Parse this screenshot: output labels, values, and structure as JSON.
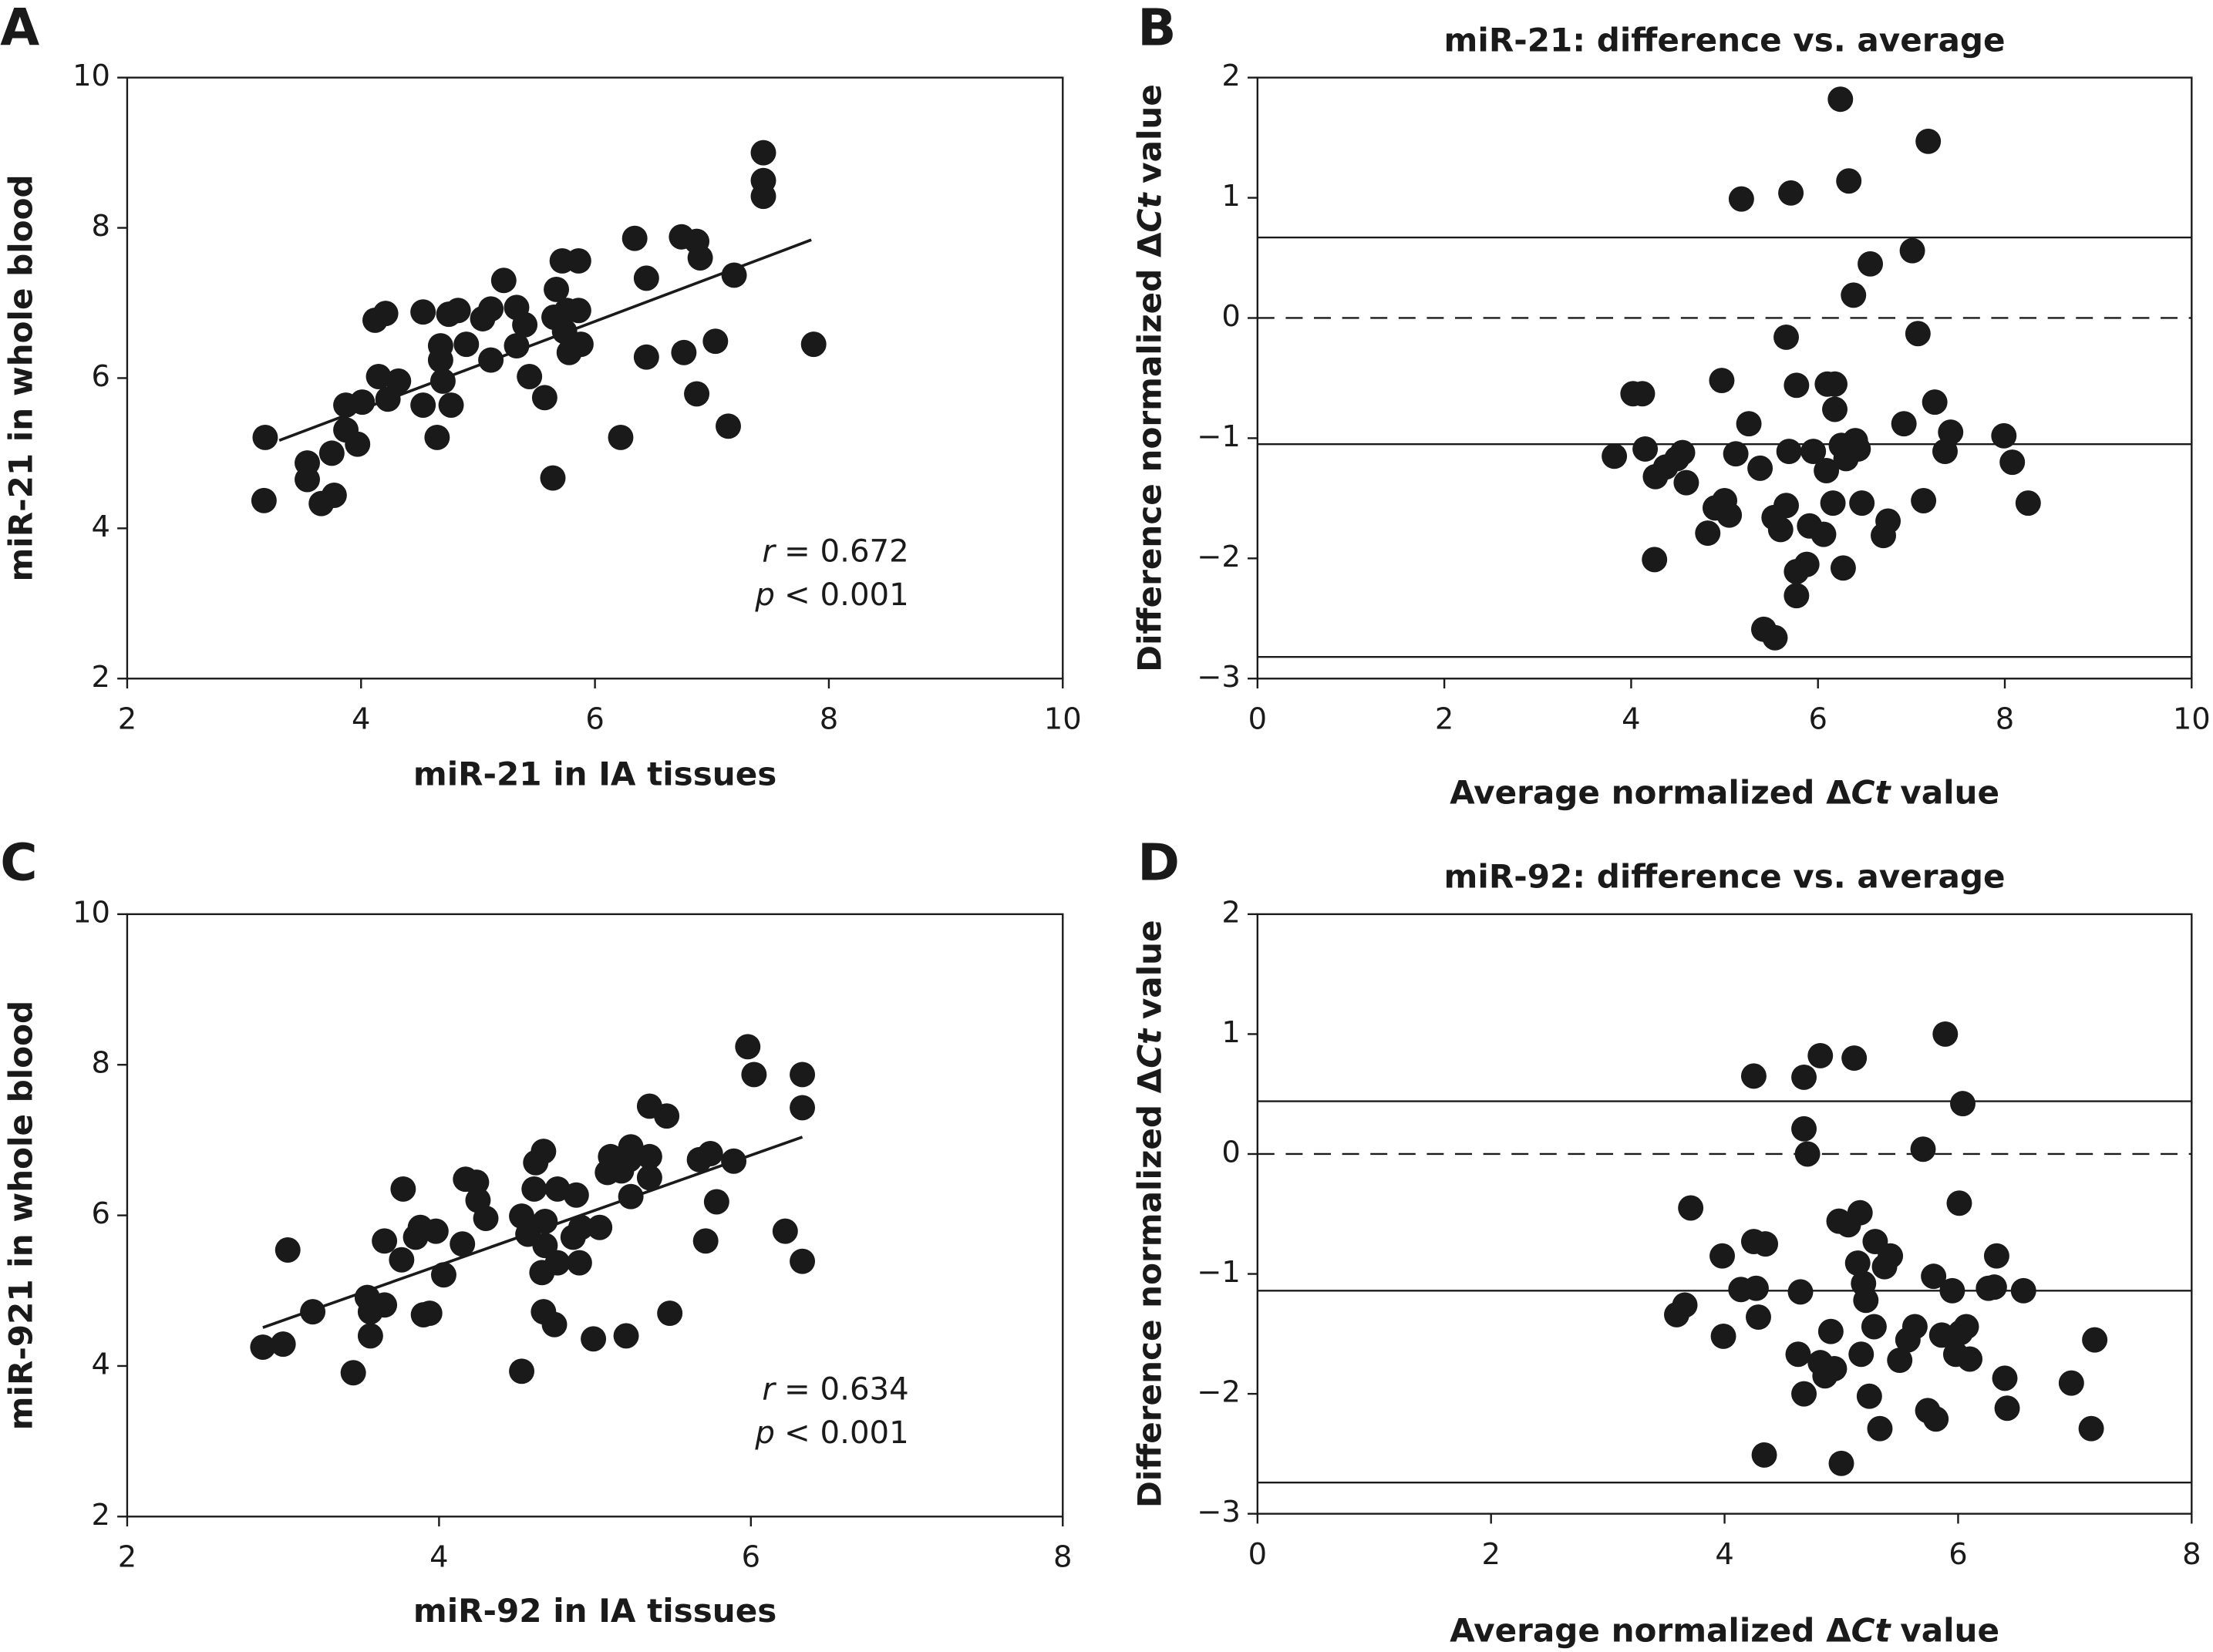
{
  "chart_data": [
    {
      "type": "scatter",
      "panel": "A",
      "xlabel": [
        {
          "text": "miR-21 in IA tissues"
        }
      ],
      "ylabel": [
        {
          "text": "miR-21 in whole blood"
        }
      ],
      "xlim": [
        2,
        10
      ],
      "xticks": [
        2,
        4,
        6,
        8,
        10
      ],
      "ylim": [
        2,
        10
      ],
      "yticks": [
        2,
        4,
        6,
        8,
        10
      ],
      "color": "#1a1a1a",
      "x": [
        3.18,
        3.17,
        3.54,
        3.54,
        3.66,
        3.77,
        3.75,
        3.87,
        3.87,
        3.97,
        4.01,
        4.15,
        4.23,
        4.32,
        4.12,
        4.21,
        4.53,
        4.53,
        4.65,
        4.68,
        4.68,
        4.7,
        4.75,
        4.77,
        4.83,
        4.9,
        5.04,
        5.11,
        5.11,
        5.22,
        5.33,
        5.33,
        5.4,
        5.44,
        5.57,
        5.64,
        5.65,
        5.67,
        5.72,
        5.74,
        5.76,
        5.78,
        5.86,
        5.86,
        5.88,
        6.22,
        6.34,
        6.44,
        6.44,
        6.74,
        6.76,
        6.87,
        6.9,
        6.87,
        7.03,
        7.14,
        7.19,
        7.44,
        7.44,
        7.44,
        7.87
      ],
      "values": [
        5.21,
        4.37,
        4.87,
        4.65,
        4.33,
        4.44,
        5.0,
        5.31,
        5.64,
        5.12,
        5.68,
        6.02,
        5.72,
        5.96,
        6.77,
        6.86,
        6.88,
        5.64,
        5.21,
        6.43,
        6.24,
        5.96,
        6.85,
        5.64,
        6.9,
        6.45,
        6.79,
        6.92,
        6.24,
        7.3,
        6.94,
        6.43,
        6.71,
        6.02,
        5.74,
        4.67,
        6.81,
        7.18,
        7.56,
        6.62,
        6.9,
        6.34,
        7.56,
        6.9,
        6.45,
        5.21,
        7.86,
        7.33,
        6.28,
        7.88,
        6.34,
        7.82,
        7.6,
        5.79,
        6.49,
        5.36,
        7.37,
        9.0,
        8.63,
        8.42,
        6.45
      ],
      "fit": {
        "x": [
          3.3,
          7.85
        ],
        "values": [
          5.17,
          7.84
        ]
      },
      "annotations": [
        {
          "italic": "r",
          "text": "= 0.672"
        },
        {
          "italic": "p",
          "text": "< 0.001"
        }
      ]
    },
    {
      "type": "scatter",
      "panel": "B",
      "title": "miR-21: difference vs. average",
      "xlabel": [
        {
          "text": "Average normalized Δ"
        },
        {
          "text": "Ct",
          "italic": true
        },
        {
          "text": "value"
        }
      ],
      "ylabel": [
        {
          "text": "Difference normalized Δ"
        },
        {
          "text": "Ct",
          "italic": true
        },
        {
          "text": "value"
        }
      ],
      "xlim": [
        0,
        10
      ],
      "xticks": [
        0,
        2,
        4,
        6,
        8,
        10
      ],
      "ylim": [
        -3,
        2
      ],
      "yticks": [
        {
          "value": -3,
          "label": "−3"
        },
        {
          "value": -2,
          "label": "−2"
        },
        {
          "value": -1,
          "label": "−1"
        },
        0,
        1,
        2
      ],
      "color": "#1a1a1a",
      "hlines": [
        {
          "value": 0.67,
          "dashed": false
        },
        {
          "value": 0,
          "dashed": true
        },
        {
          "value": -1.05,
          "dashed": false
        },
        {
          "value": -2.82,
          "dashed": false
        }
      ],
      "x": [
        6.24,
        7.18,
        5.18,
        5.71,
        6.33,
        7.01,
        6.56,
        6.38,
        7.07,
        5.66,
        3.82,
        4.02,
        4.12,
        4.15,
        4.26,
        4.37,
        4.49,
        4.55,
        4.59,
        4.25,
        4.97,
        4.82,
        4.9,
        5.0,
        5.05,
        5.12,
        5.26,
        5.38,
        5.53,
        5.6,
        5.66,
        5.69,
        5.77,
        5.77,
        5.77,
        5.88,
        5.91,
        5.95,
        6.06,
        6.09,
        6.1,
        6.18,
        6.16,
        6.18,
        6.25,
        6.3,
        6.27,
        6.4,
        6.43,
        6.47,
        6.7,
        6.75,
        6.92,
        7.13,
        7.25,
        7.36,
        7.42,
        7.99,
        8.08,
        8.25,
        5.42,
        5.54
      ],
      "values": [
        1.82,
        1.47,
        0.99,
        1.04,
        1.14,
        0.56,
        0.45,
        0.19,
        -0.13,
        -0.16,
        -1.15,
        -0.63,
        -0.63,
        -1.09,
        -1.32,
        -1.24,
        -1.17,
        -1.12,
        -1.37,
        -2.01,
        -0.52,
        -1.79,
        -1.58,
        -1.52,
        -1.64,
        -1.13,
        -0.88,
        -1.25,
        -1.66,
        -1.76,
        -1.56,
        -1.11,
        -0.56,
        -2.11,
        -2.31,
        -2.05,
        -1.73,
        -1.11,
        -1.8,
        -1.27,
        -0.55,
        -0.55,
        -1.54,
        -0.76,
        -1.06,
        -1.17,
        -2.08,
        -1.02,
        -1.09,
        -1.54,
        -1.81,
        -1.69,
        -0.88,
        -1.52,
        -0.7,
        -1.11,
        -0.95,
        -0.98,
        -1.2,
        -1.54,
        -2.59,
        -2.66
      ]
    },
    {
      "type": "scatter",
      "panel": "C",
      "xlabel": [
        {
          "text": "miR-92 in IA tissues"
        }
      ],
      "ylabel": [
        {
          "text": "miR-921 in whole blood"
        }
      ],
      "xlim": [
        2,
        8
      ],
      "xticks": [
        2,
        4,
        6,
        8
      ],
      "ylim": [
        2,
        10
      ],
      "yticks": [
        2,
        4,
        6,
        8,
        10
      ],
      "color": "#1a1a1a",
      "x": [
        2.87,
        3.0,
        3.03,
        3.19,
        3.45,
        3.54,
        3.56,
        3.56,
        3.65,
        3.65,
        3.76,
        3.77,
        3.85,
        3.88,
        3.9,
        3.94,
        3.98,
        4.03,
        4.15,
        4.17,
        4.24,
        4.25,
        4.3,
        4.53,
        4.53,
        4.57,
        4.61,
        4.62,
        4.67,
        4.67,
        4.66,
        4.68,
        4.68,
        4.74,
        4.76,
        4.76,
        4.86,
        4.88,
        4.9,
        4.91,
        4.99,
        5.03,
        5.08,
        5.1,
        5.17,
        5.22,
        5.23,
        5.2,
        5.23,
        5.35,
        5.35,
        5.35,
        5.46,
        5.48,
        5.67,
        5.71,
        5.74,
        5.78,
        5.89,
        5.98,
        6.02,
        6.22,
        6.33,
        6.33,
        6.33
      ],
      "values": [
        4.25,
        4.29,
        5.54,
        4.72,
        3.91,
        4.91,
        4.4,
        4.72,
        4.81,
        5.66,
        5.41,
        6.35,
        5.71,
        5.84,
        4.68,
        4.7,
        5.79,
        5.21,
        5.62,
        6.48,
        6.44,
        6.2,
        5.96,
        3.93,
        5.99,
        5.75,
        6.35,
        6.7,
        6.85,
        4.72,
        5.24,
        5.92,
        5.6,
        4.55,
        5.37,
        6.35,
        5.71,
        6.27,
        5.37,
        5.84,
        4.36,
        5.84,
        6.57,
        6.78,
        6.59,
        6.74,
        6.25,
        4.4,
        6.91,
        7.45,
        6.5,
        6.78,
        7.32,
        4.7,
        6.74,
        5.66,
        6.82,
        6.18,
        6.72,
        8.24,
        7.87,
        5.79,
        7.87,
        7.43,
        5.39
      ],
      "fit": {
        "x": [
          2.87,
          6.33
        ],
        "values": [
          4.51,
          7.04
        ]
      },
      "annotations": [
        {
          "italic": "r",
          "text": "= 0.634"
        },
        {
          "italic": "p",
          "text": "< 0.001"
        }
      ]
    },
    {
      "type": "scatter",
      "panel": "D",
      "title": "miR-92: difference vs. average",
      "xlabel": [
        {
          "text": "Average normalized Δ"
        },
        {
          "text": "Ct",
          "italic": true
        },
        {
          "text": "value"
        }
      ],
      "ylabel": [
        {
          "text": "Difference normalized Δ"
        },
        {
          "text": "Ct",
          "italic": true
        },
        {
          "text": "value"
        }
      ],
      "xlim": [
        0,
        8
      ],
      "xticks": [
        0,
        2,
        4,
        6,
        8
      ],
      "ylim": [
        -3,
        2
      ],
      "yticks": [
        {
          "value": -3,
          "label": "−3"
        },
        {
          "value": -2,
          "label": "−2"
        },
        {
          "value": -1,
          "label": "−1"
        },
        0,
        1,
        2
      ],
      "color": "#1a1a1a",
      "hlines": [
        {
          "value": 0.44,
          "dashed": false
        },
        {
          "value": 0,
          "dashed": true
        },
        {
          "value": -1.14,
          "dashed": false
        },
        {
          "value": -2.74,
          "dashed": false
        }
      ],
      "x": [
        3.59,
        3.66,
        3.71,
        3.98,
        3.99,
        4.14,
        4.25,
        4.27,
        4.29,
        4.25,
        4.34,
        4.35,
        4.65,
        4.63,
        4.68,
        4.68,
        4.68,
        4.71,
        4.82,
        4.82,
        4.86,
        4.91,
        4.94,
        4.98,
        5.06,
        5.11,
        5.14,
        5.16,
        5.17,
        5.19,
        5.21,
        5.24,
        5.28,
        5.29,
        5.33,
        5.37,
        5.42,
        5.5,
        5.57,
        5.63,
        5.7,
        5.74,
        5.79,
        5.81,
        5.86,
        5.89,
        5.95,
        5.98,
        6.01,
        6.02,
        6.04,
        6.07,
        6.1,
        6.26,
        6.31,
        6.33,
        6.4,
        6.42,
        6.56,
        6.97,
        7.14,
        7.17,
        5.0
      ],
      "values": [
        -1.34,
        -1.26,
        -0.45,
        -0.85,
        -1.52,
        -1.13,
        -0.73,
        -1.12,
        -1.36,
        0.65,
        -2.51,
        -0.75,
        -1.15,
        -1.67,
        -2.0,
        0.64,
        0.21,
        0.0,
        0.82,
        -1.74,
        -1.85,
        -1.48,
        -1.79,
        -0.56,
        -0.59,
        0.8,
        -0.91,
        -0.49,
        -1.67,
        -1.08,
        -1.22,
        -2.02,
        -1.44,
        -0.73,
        -2.29,
        -0.94,
        -0.85,
        -1.72,
        -1.55,
        -1.44,
        0.04,
        -2.14,
        -1.02,
        -2.21,
        -1.51,
        1.0,
        -1.14,
        -1.67,
        -0.41,
        -1.49,
        0.42,
        -1.44,
        -1.71,
        -1.12,
        -1.11,
        -0.85,
        -1.87,
        -2.12,
        -1.14,
        -1.91,
        -2.29,
        -1.55,
        -2.58
      ]
    }
  ]
}
